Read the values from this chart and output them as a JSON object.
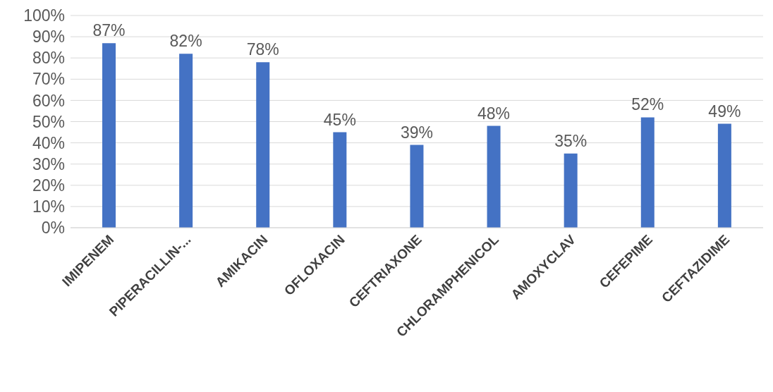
{
  "chart_data": {
    "type": "bar",
    "categories": [
      "IMIPENEM",
      "PIPERACILLIN-...",
      "AMIKACIN",
      "OFLOXACIN",
      "CEFTRIAXONE",
      "CHLORAMPHENICOL",
      "AMOXYCLAV",
      "CEFEPIME",
      "CEFTAZIDIME"
    ],
    "values": [
      87,
      82,
      78,
      45,
      39,
      48,
      35,
      52,
      49
    ],
    "value_labels": [
      "87%",
      "82%",
      "78%",
      "45%",
      "39%",
      "48%",
      "35%",
      "52%",
      "49%"
    ],
    "color": "#4472c4",
    "ylim": [
      0,
      100
    ],
    "yticks": [
      {
        "value": 0,
        "label": "0%"
      },
      {
        "value": 10,
        "label": "10%"
      },
      {
        "value": 20,
        "label": "20%"
      },
      {
        "value": 30,
        "label": "30%"
      },
      {
        "value": 40,
        "label": "40%"
      },
      {
        "value": 50,
        "label": "50%"
      },
      {
        "value": 60,
        "label": "60%"
      },
      {
        "value": 70,
        "label": "70%"
      },
      {
        "value": 80,
        "label": "80%"
      },
      {
        "value": 90,
        "label": "90%"
      },
      {
        "value": 100,
        "label": "100%"
      }
    ],
    "grid": "y",
    "legend": false
  }
}
